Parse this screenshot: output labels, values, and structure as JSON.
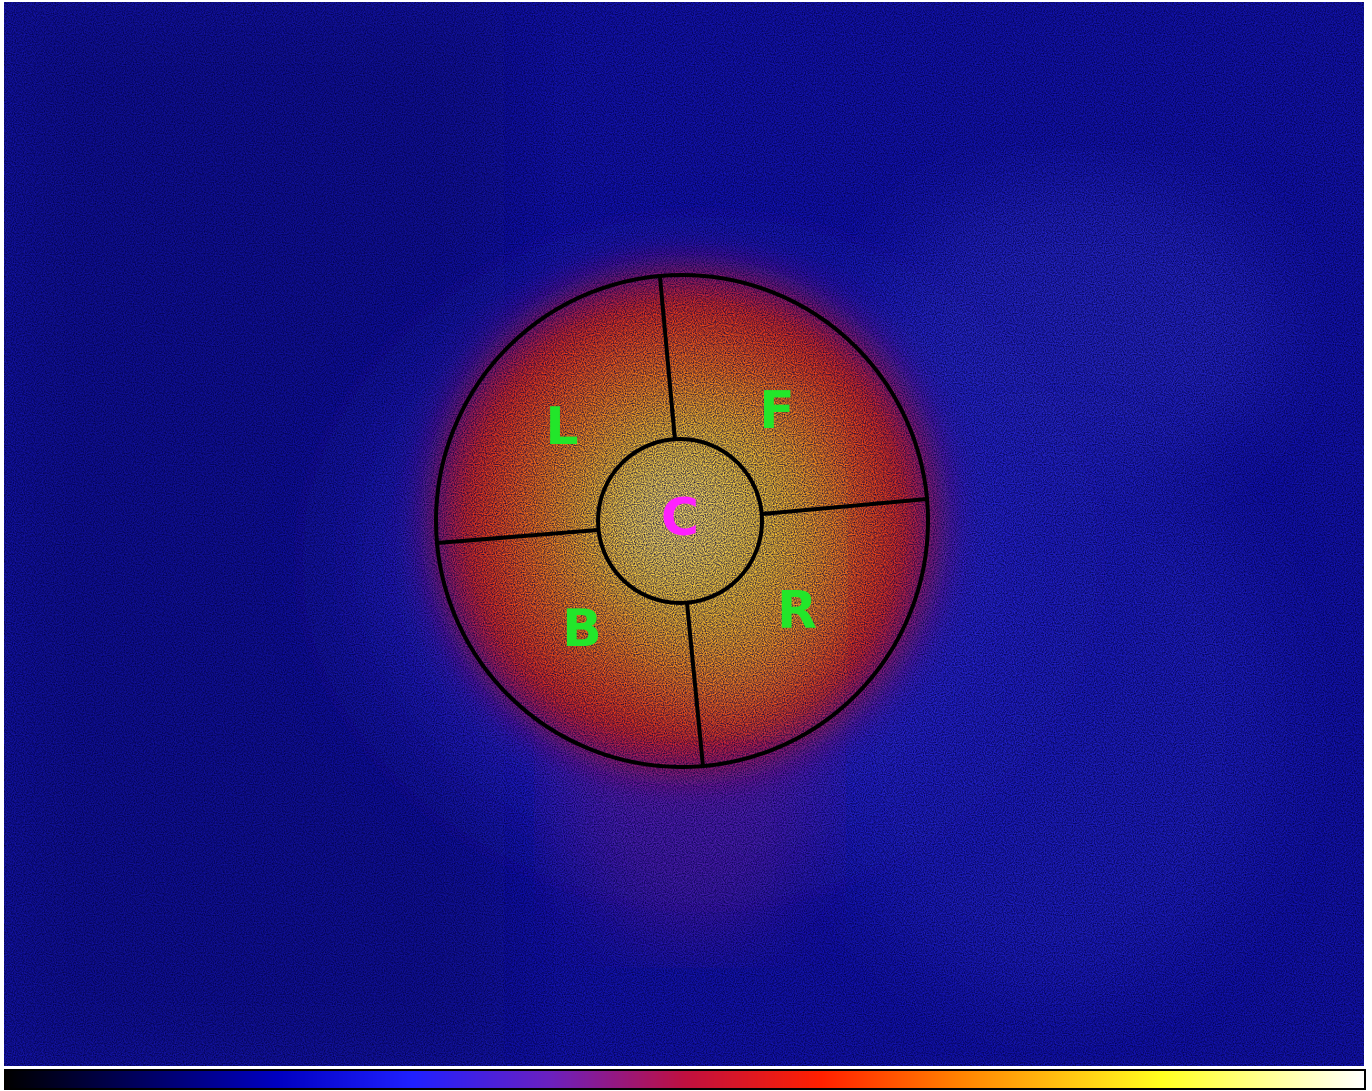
{
  "regions": [
    {
      "label": "L"
    },
    {
      "label": "F"
    },
    {
      "label": "C"
    },
    {
      "label": "B"
    },
    {
      "label": "R"
    }
  ]
}
